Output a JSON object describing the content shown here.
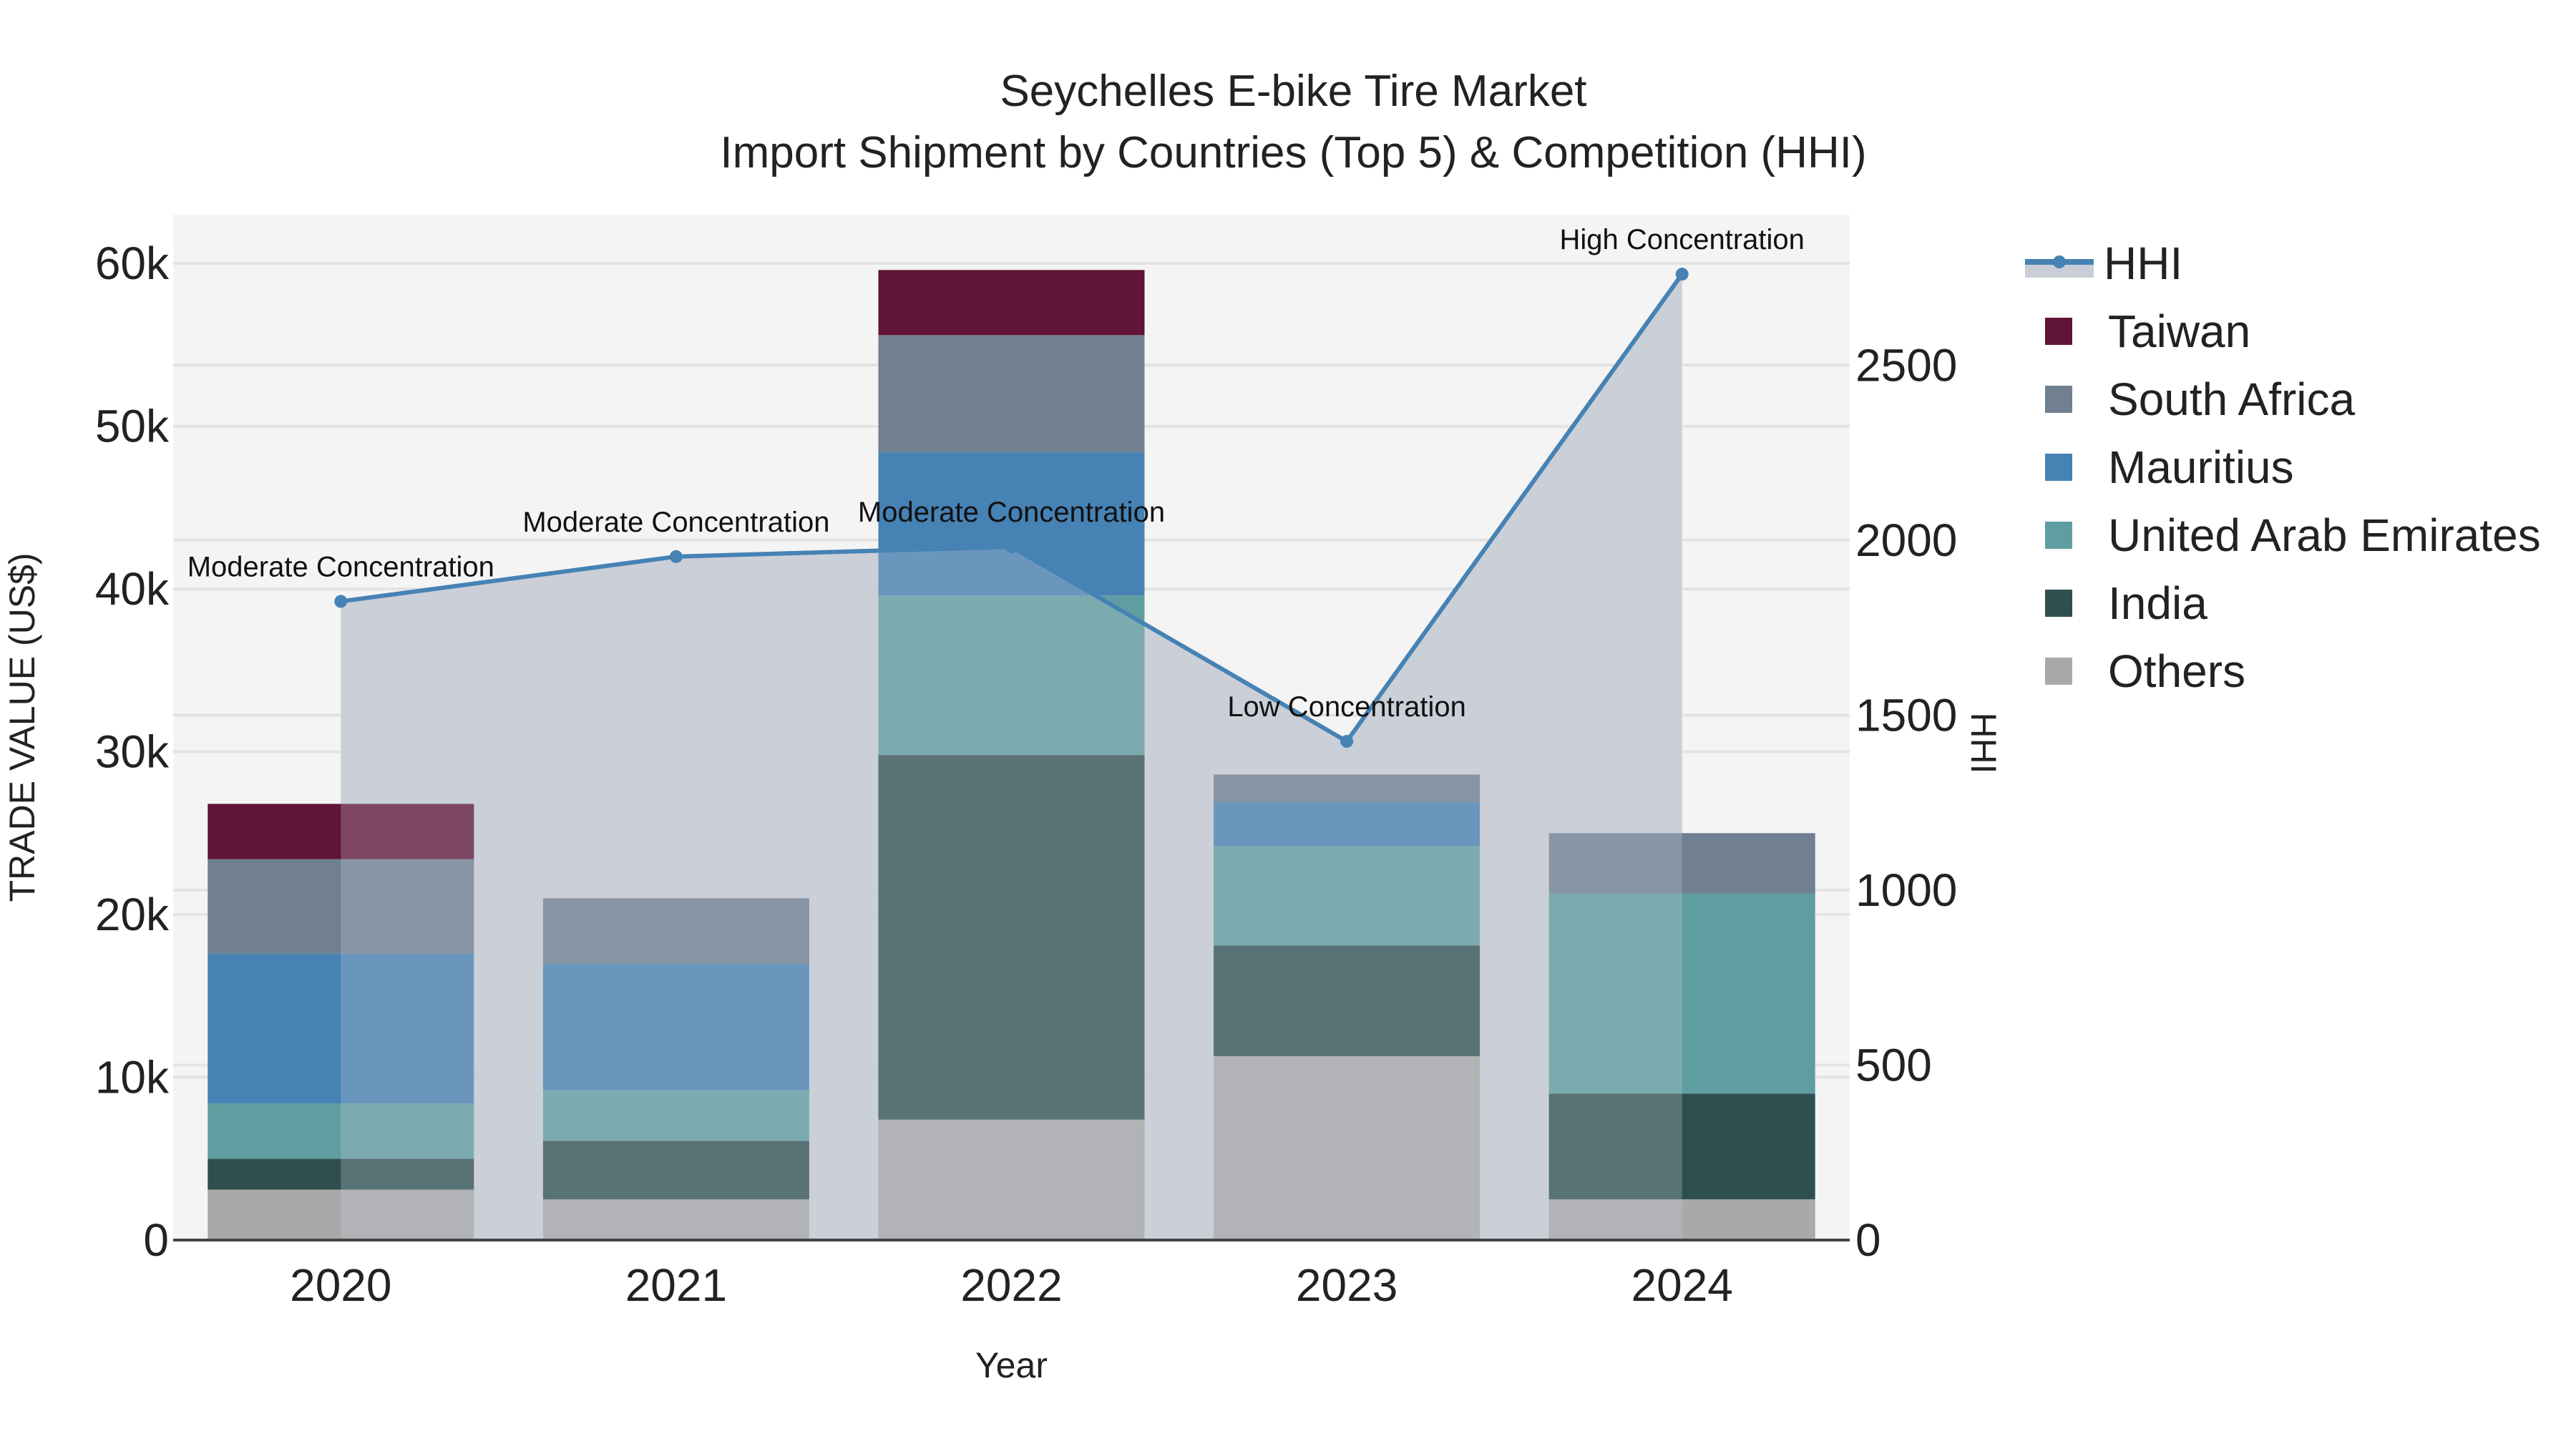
{
  "title": {
    "line1": "Seychelles E-bike Tire Market",
    "line2": "Import Shipment by Countries (Top 5) & Competition (HHI)"
  },
  "axes": {
    "x_label": "Year",
    "y_left_label": "TRADE VALUE (US$)",
    "y_right_label": "HHI",
    "y_left_ticks": [
      "0",
      "10k",
      "20k",
      "30k",
      "40k",
      "50k",
      "60k"
    ],
    "y_right_ticks": [
      "0",
      "500",
      "1000",
      "1500",
      "2000",
      "2500"
    ],
    "x_ticks": [
      "2020",
      "2021",
      "2022",
      "2023",
      "2024"
    ]
  },
  "legend": {
    "items": [
      {
        "label": "HHI",
        "type": "line",
        "color": "#4682b4"
      },
      {
        "label": "Taiwan",
        "type": "bar",
        "color": "#601436"
      },
      {
        "label": "South Africa",
        "type": "bar",
        "color": "#708090"
      },
      {
        "label": "Mauritius",
        "type": "bar",
        "color": "#4682b4"
      },
      {
        "label": "United Arab Emirates",
        "type": "bar",
        "color": "#5f9ea0"
      },
      {
        "label": "India",
        "type": "bar",
        "color": "#2f4f4f"
      },
      {
        "label": "Others",
        "type": "bar",
        "color": "#a9a9a9"
      }
    ]
  },
  "annotations": [
    {
      "year": "2020",
      "text": "Moderate Concentration"
    },
    {
      "year": "2021",
      "text": "Moderate Concentration"
    },
    {
      "year": "2022",
      "text": "Moderate Concentration"
    },
    {
      "year": "2023",
      "text": "Low Concentration"
    },
    {
      "year": "2024",
      "text": "High Concentration"
    }
  ],
  "colors": {
    "plot_bg": "#f4f4f4",
    "grid": "#e3e3e3",
    "hhi_area": "#c8cdd6",
    "hhi_line": "#4682b4"
  },
  "chart_data": {
    "type": "bar",
    "stacked": true,
    "title": "Seychelles E-bike Tire Market — Import Shipment by Countries (Top 5) & Competition (HHI)",
    "xlabel": "Year",
    "ylabel": "TRADE VALUE (US$)",
    "y2label": "HHI",
    "categories": [
      "2020",
      "2021",
      "2022",
      "2023",
      "2024"
    ],
    "ylim": [
      0,
      63000
    ],
    "y2lim": [
      0,
      2930
    ],
    "grid": true,
    "legend_position": "right",
    "series": [
      {
        "name": "Others",
        "color": "#a9a9a9",
        "values": [
          3100,
          2500,
          7400,
          11300,
          2500
        ]
      },
      {
        "name": "India",
        "color": "#2f4f4f",
        "values": [
          1900,
          3600,
          22400,
          6800,
          6500
        ]
      },
      {
        "name": "United Arab Emirates",
        "color": "#5f9ea0",
        "values": [
          3400,
          3100,
          9800,
          6100,
          12300
        ]
      },
      {
        "name": "Mauritius",
        "color": "#4682b4",
        "values": [
          9200,
          7800,
          8800,
          2700,
          0
        ]
      },
      {
        "name": "South Africa",
        "color": "#708090",
        "values": [
          5800,
          4000,
          7200,
          1700,
          3700
        ]
      },
      {
        "name": "Taiwan",
        "color": "#601436",
        "values": [
          3400,
          0,
          4000,
          0,
          0
        ]
      }
    ],
    "line_series": {
      "name": "HHI",
      "axis": "right",
      "fill": "tozeroy",
      "color": "#4682b4",
      "values": [
        1825,
        1953,
        1981,
        1425,
        2760
      ],
      "labels": [
        "Moderate Concentration",
        "Moderate Concentration",
        "Moderate Concentration",
        "Low Concentration",
        "High Concentration"
      ]
    }
  }
}
